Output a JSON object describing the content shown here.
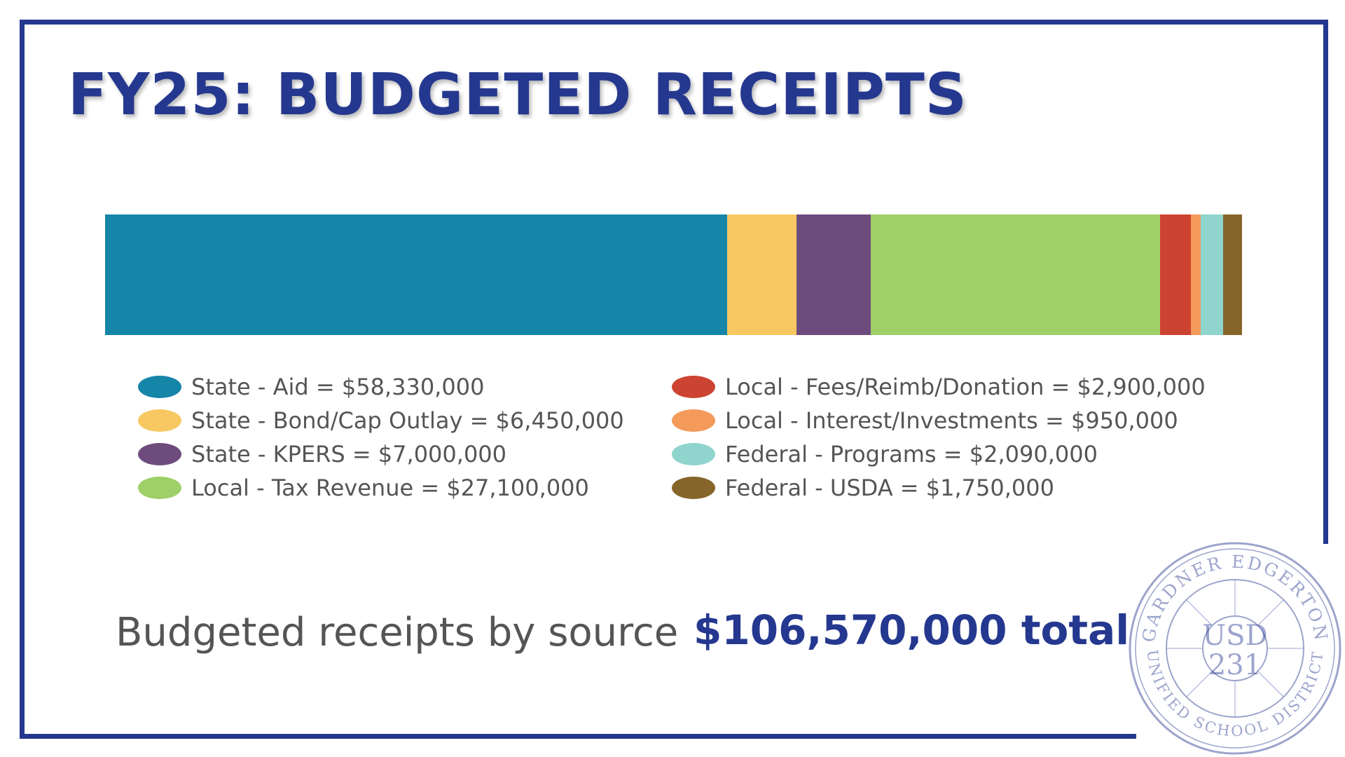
{
  "page": {
    "title": "FY25: BUDGETED RECEIPTS",
    "colors": {
      "frame": "#25388f",
      "title": "#25388f",
      "text": "#555555"
    }
  },
  "chart_data": {
    "type": "bar",
    "stacked": true,
    "orientation": "horizontal",
    "title": "FY25: BUDGETED RECEIPTS",
    "series": [
      {
        "name": "State - Aid",
        "value": 58330000,
        "color": "#1585a8",
        "label": "State - Aid = $58,330,000"
      },
      {
        "name": "State - Bond/Cap Outlay",
        "value": 6450000,
        "color": "#f7c862",
        "label": "State - Bond/Cap Outlay = $6,450,000"
      },
      {
        "name": "State - KPERS",
        "value": 7000000,
        "color": "#6d4c7d",
        "label": "State - KPERS = $7,000,000"
      },
      {
        "name": "Local - Tax Revenue",
        "value": 27100000,
        "color": "#9ecf68",
        "label": "Local - Tax Revenue = $27,100,000"
      },
      {
        "name": "Local - Fees/Reimb/Donation",
        "value": 2900000,
        "color": "#cd4331",
        "label": "Local - Fees/Reimb/Donation = $2,900,000"
      },
      {
        "name": "Local - Interest/Investments",
        "value": 950000,
        "color": "#f49a5a",
        "label": "Local - Interest/Investments = $950,000"
      },
      {
        "name": "Federal - Programs",
        "value": 2090000,
        "color": "#8fd4cd",
        "label": "Federal - Programs = $2,090,000"
      },
      {
        "name": "Federal - USDA",
        "value": 1750000,
        "color": "#856529",
        "label": "Federal - USDA = $1,750,000"
      }
    ],
    "legend_position": "bottom",
    "grid": false
  },
  "footer": {
    "label": "Budgeted receipts by source",
    "total": "$106,570,000 total"
  },
  "seal": {
    "ring_text_top": "GARDNER EDGERTON",
    "ring_text_bottom": "UNIFIED SCHOOL DISTRICT",
    "center_line1": "USD",
    "center_line2": "231",
    "color": "#25388f"
  }
}
